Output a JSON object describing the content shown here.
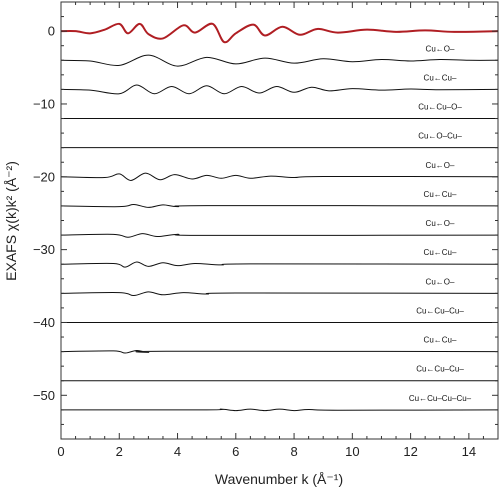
{
  "chart_data": {
    "type": "line",
    "title": "",
    "xlabel": "Wavenumber k (Å⁻¹)",
    "ylabel": "EXAFS χ(k)k² (Å⁻²)",
    "xlim": [
      0,
      15
    ],
    "ylim": [
      -56,
      4
    ],
    "xticks": [
      "0",
      "2",
      "4",
      "6",
      "8",
      "10",
      "12",
      "14"
    ],
    "xtick_values": [
      0,
      2,
      4,
      6,
      8,
      10,
      12,
      14
    ],
    "yticks": [
      "0",
      "−10",
      "−20",
      "−30",
      "−40",
      "−50"
    ],
    "ytick_values": [
      0,
      -10,
      -20,
      -30,
      -40,
      -50
    ],
    "grid": false,
    "legend": "none",
    "colors": {
      "total": "#b01e23",
      "paths": "#111111"
    },
    "series": [
      {
        "name": "",
        "label": "",
        "offset": 0,
        "color": "#b01e23",
        "points": [
          [
            0,
            0
          ],
          [
            0.5,
            0
          ],
          [
            1,
            -0.3
          ],
          [
            1.5,
            0.2
          ],
          [
            2,
            1.0
          ],
          [
            2.3,
            -0.3
          ],
          [
            2.7,
            1.0
          ],
          [
            3.0,
            -0.4
          ],
          [
            3.5,
            -1.0
          ],
          [
            4.2,
            0.8
          ],
          [
            4.6,
            -0.2
          ],
          [
            5.2,
            1.0
          ],
          [
            5.6,
            -1.5
          ],
          [
            6.0,
            -0.3
          ],
          [
            6.6,
            0.9
          ],
          [
            7.0,
            -0.6
          ],
          [
            7.6,
            0.6
          ],
          [
            8.2,
            -0.5
          ],
          [
            8.8,
            0.3
          ],
          [
            9.5,
            -0.2
          ],
          [
            10.5,
            0.2
          ],
          [
            11.5,
            -0.1
          ],
          [
            12.5,
            0.1
          ],
          [
            13.5,
            -0.1
          ],
          [
            15,
            0
          ]
        ]
      },
      {
        "name": "",
        "label": "Cu←O–",
        "offset": -4,
        "points": [
          [
            0,
            -4
          ],
          [
            1,
            -4.1
          ],
          [
            2,
            -4.7
          ],
          [
            3,
            -3.3
          ],
          [
            4,
            -4.8
          ],
          [
            5,
            -3.6
          ],
          [
            6,
            -4.5
          ],
          [
            7,
            -3.7
          ],
          [
            8,
            -4.4
          ],
          [
            9,
            -3.8
          ],
          [
            10,
            -4.2
          ],
          [
            11,
            -3.9
          ],
          [
            12,
            -4.1
          ],
          [
            13,
            -3.9
          ],
          [
            14,
            -4.0
          ],
          [
            15,
            -4.0
          ]
        ]
      },
      {
        "name": "",
        "label": "Cu←Cu–",
        "offset": -8,
        "points": [
          [
            0,
            -8
          ],
          [
            1,
            -8.1
          ],
          [
            2,
            -8.6
          ],
          [
            2.6,
            -7.4
          ],
          [
            3.2,
            -8.6
          ],
          [
            3.8,
            -7.6
          ],
          [
            4.4,
            -8.6
          ],
          [
            5.0,
            -7.5
          ],
          [
            5.6,
            -8.6
          ],
          [
            6.2,
            -7.6
          ],
          [
            6.8,
            -8.5
          ],
          [
            7.4,
            -7.6
          ],
          [
            8.0,
            -8.4
          ],
          [
            8.6,
            -7.7
          ],
          [
            9.2,
            -8.2
          ],
          [
            10,
            -7.9
          ],
          [
            11,
            -8.1
          ],
          [
            12,
            -7.95
          ],
          [
            13,
            -8.05
          ],
          [
            15,
            -8
          ]
        ]
      },
      {
        "name": "",
        "label": "Cu←Cu–O–",
        "offset": -12,
        "points": [
          [
            0,
            -12
          ],
          [
            15,
            -12
          ]
        ]
      },
      {
        "name": "",
        "label": "Cu←O–Cu–",
        "offset": -16,
        "points": [
          [
            0,
            -16
          ],
          [
            15,
            -16
          ]
        ]
      },
      {
        "name": "",
        "label": "Cu←O–",
        "offset": -20,
        "points": [
          [
            0,
            -20
          ],
          [
            1.5,
            -20.1
          ],
          [
            2,
            -19.6
          ],
          [
            2.4,
            -20.5
          ],
          [
            2.9,
            -19.5
          ],
          [
            3.4,
            -20.4
          ],
          [
            3.9,
            -19.7
          ],
          [
            4.5,
            -20.3
          ],
          [
            5.0,
            -19.8
          ],
          [
            5.5,
            -20.2
          ],
          [
            6.0,
            -19.8
          ],
          [
            6.5,
            -20.2
          ],
          [
            7.2,
            -19.9
          ],
          [
            8,
            -20.1
          ],
          [
            9,
            -19.95
          ],
          [
            15,
            -20
          ]
        ]
      },
      {
        "name": "",
        "label": "Cu←Cu–",
        "offset": -24,
        "points": [
          [
            0,
            -24
          ],
          [
            2,
            -24.1
          ],
          [
            2.5,
            -23.8
          ],
          [
            3,
            -24.2
          ],
          [
            3.5,
            -23.85
          ],
          [
            4,
            -24.1
          ],
          [
            5,
            -23.95
          ],
          [
            15,
            -24
          ]
        ]
      },
      {
        "name": "",
        "label": "Cu←O–",
        "offset": -28,
        "points": [
          [
            0,
            -28
          ],
          [
            1.8,
            -27.9
          ],
          [
            2.3,
            -28.3
          ],
          [
            2.8,
            -27.8
          ],
          [
            3.3,
            -28.2
          ],
          [
            4,
            -27.9
          ],
          [
            5,
            -28.05
          ],
          [
            15,
            -28
          ]
        ]
      },
      {
        "name": "",
        "label": "Cu←Cu–",
        "offset": -32,
        "points": [
          [
            0,
            -32
          ],
          [
            1.8,
            -31.9
          ],
          [
            2.2,
            -32.4
          ],
          [
            2.6,
            -31.7
          ],
          [
            3.0,
            -32.3
          ],
          [
            3.5,
            -31.8
          ],
          [
            4.0,
            -32.2
          ],
          [
            4.6,
            -31.9
          ],
          [
            5.5,
            -32.1
          ],
          [
            6.5,
            -31.95
          ],
          [
            15,
            -32
          ]
        ]
      },
      {
        "name": "",
        "label": "Cu←O–",
        "offset": -36,
        "points": [
          [
            0,
            -36
          ],
          [
            2,
            -35.9
          ],
          [
            2.5,
            -36.3
          ],
          [
            3,
            -35.8
          ],
          [
            3.5,
            -36.2
          ],
          [
            4.2,
            -35.9
          ],
          [
            5,
            -36.1
          ],
          [
            6,
            -35.95
          ],
          [
            15,
            -36
          ]
        ]
      },
      {
        "name": "",
        "label": "Cu←Cu–Cu–",
        "offset": -40,
        "points": [
          [
            0,
            -40
          ],
          [
            15,
            -40
          ]
        ]
      },
      {
        "name": "",
        "label": "Cu←Cu–",
        "offset": -44,
        "points": [
          [
            0,
            -44
          ],
          [
            1.8,
            -43.9
          ],
          [
            2.2,
            -44.2
          ],
          [
            2.6,
            -43.85
          ],
          [
            3.0,
            -44.1
          ],
          [
            3.6,
            -43.95
          ],
          [
            15,
            -44
          ]
        ]
      },
      {
        "name": "",
        "label": "Cu←Cu–Cu–",
        "offset": -48,
        "points": [
          [
            0,
            -48
          ],
          [
            15,
            -48
          ]
        ]
      },
      {
        "name": "",
        "label": "Cu←Cu–Cu–Cu–",
        "offset": -52,
        "points": [
          [
            0,
            -52
          ],
          [
            5,
            -52
          ],
          [
            5.5,
            -51.9
          ],
          [
            6,
            -52.1
          ],
          [
            6.5,
            -51.9
          ],
          [
            7,
            -52.1
          ],
          [
            7.5,
            -51.9
          ],
          [
            8,
            -52.1
          ],
          [
            8.5,
            -51.95
          ],
          [
            9.5,
            -52.05
          ],
          [
            15,
            -52
          ]
        ]
      }
    ]
  }
}
